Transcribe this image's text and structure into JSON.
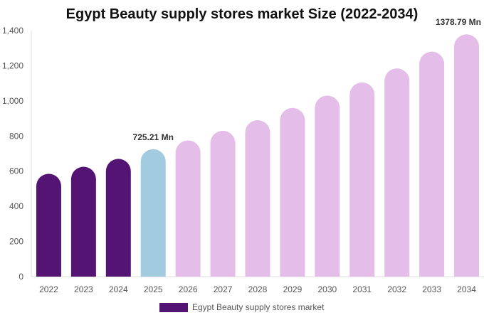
{
  "chart_data": {
    "type": "bar",
    "title": "Egypt Beauty supply stores market Size (2022-2034)",
    "categories": [
      "2022",
      "2023",
      "2024",
      "2025",
      "2026",
      "2027",
      "2028",
      "2029",
      "2030",
      "2031",
      "2032",
      "2033",
      "2034"
    ],
    "series": [
      {
        "name": "Egypt Beauty supply stores market",
        "values": [
          585,
          625,
          670,
          725.21,
          775,
          830,
          890,
          960,
          1030,
          1105,
          1185,
          1280,
          1378.79
        ]
      }
    ],
    "ylim": [
      0,
      1400
    ],
    "yticks": [
      0,
      200,
      400,
      600,
      800,
      1000,
      1200,
      1400
    ],
    "ytick_labels": [
      "0",
      "200",
      "400",
      "600",
      "800",
      "1,000",
      "1,200",
      "1,400"
    ],
    "data_labels": [
      {
        "category": "2025",
        "text": "725.21 Mn"
      },
      {
        "category": "2034",
        "text": "1378.79 Mn"
      }
    ],
    "colors": {
      "historical": "#541474",
      "base_year": "#a3cbdf",
      "forecast": "#e5bde9"
    },
    "historical_categories": [
      "2022",
      "2023",
      "2024"
    ],
    "base_category": "2025",
    "legend": {
      "label": "Egypt Beauty supply stores market",
      "color": "#541474",
      "position": "bottom"
    },
    "grid": false
  }
}
